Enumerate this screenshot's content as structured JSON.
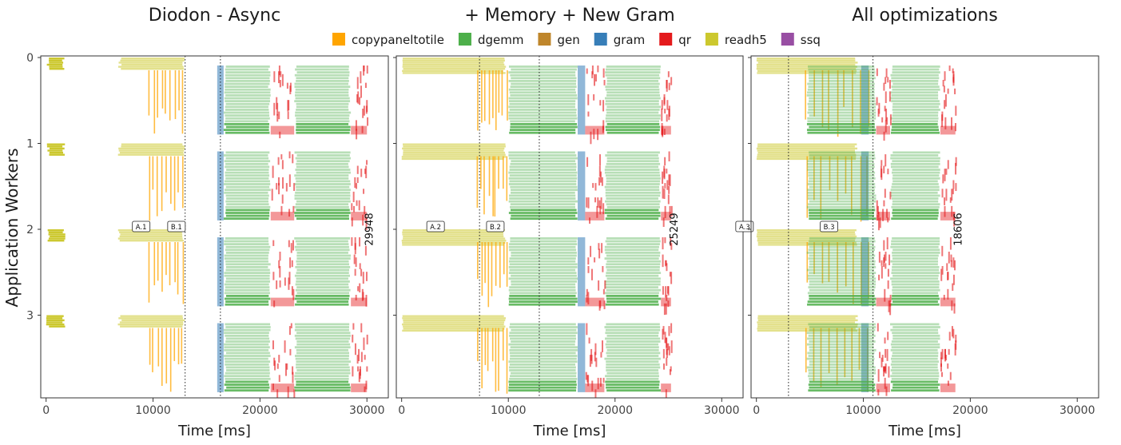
{
  "legend": {
    "items": [
      {
        "name": "copypaneltotile",
        "color": "#FFA500"
      },
      {
        "name": "dgemm",
        "color": "#4DAF4A"
      },
      {
        "name": "gen",
        "color": "#BF862B"
      },
      {
        "name": "gram",
        "color": "#377EB8"
      },
      {
        "name": "qr",
        "color": "#E41A1C"
      },
      {
        "name": "readh5",
        "color": "#CCC82E"
      },
      {
        "name": "ssq",
        "color": "#984EA3"
      }
    ]
  },
  "chart_data": [
    {
      "type": "gantt",
      "title": "Diodon - Async",
      "xlabel": "Time [ms]",
      "ylabel": "Application Workers",
      "xlim": [
        -500,
        32000
      ],
      "xticks": [
        0,
        10000,
        20000,
        30000
      ],
      "yticks": [
        0,
        1,
        2,
        3
      ],
      "markers": [
        {
          "label": "A.1",
          "x": 13000
        },
        {
          "label": "B.1",
          "x": 16300
        }
      ],
      "makespan": {
        "value": "29948",
        "x": 29948
      },
      "segments": {
        "readh5": [
          [
            0,
            1800
          ],
          [
            6700,
            13000
          ]
        ],
        "copypaneltotile": [
          [
            9500,
            13000
          ]
        ],
        "gram": [
          [
            16000,
            16600
          ]
        ],
        "dgemm": [
          [
            16600,
            21000
          ],
          [
            23200,
            28500
          ]
        ],
        "qr": [
          [
            21000,
            23200
          ],
          [
            28500,
            30000
          ]
        ]
      }
    },
    {
      "type": "gantt",
      "title": "+ Memory + New Gram",
      "xlabel": "Time [ms]",
      "ylabel": "",
      "xlim": [
        -500,
        32000
      ],
      "xticks": [
        0,
        10000,
        20000,
        30000
      ],
      "yticks": [
        0,
        1,
        2,
        3
      ],
      "markers": [
        {
          "label": "A.2",
          "x": 7300
        },
        {
          "label": "B.2",
          "x": 12900
        }
      ],
      "makespan": {
        "value": "25249",
        "x": 25249
      },
      "segments": {
        "readh5": [
          [
            0,
            9800
          ]
        ],
        "copypaneltotile": [
          [
            7000,
            10000
          ]
        ],
        "gram": [
          [
            16500,
            17200
          ]
        ],
        "dgemm": [
          [
            10000,
            16500
          ],
          [
            19000,
            24300
          ]
        ],
        "qr": [
          [
            17200,
            19000
          ],
          [
            24300,
            25249
          ]
        ]
      }
    },
    {
      "type": "gantt",
      "title": "All optimizations",
      "xlabel": "Time [ms]",
      "ylabel": "",
      "xlim": [
        -500,
        32000
      ],
      "xticks": [
        0,
        10000,
        20000,
        30000
      ],
      "yticks": [
        0,
        1,
        2,
        3
      ],
      "markers": [
        {
          "label": "A.3",
          "x": 3000
        },
        {
          "label": "B.3",
          "x": 10900
        }
      ],
      "makespan": {
        "value": "18606",
        "x": 18606
      },
      "segments": {
        "readh5": [
          [
            0,
            9500
          ]
        ],
        "copypaneltotile": [
          [
            4500,
            11000
          ]
        ],
        "gram": [
          [
            9800,
            10500
          ]
        ],
        "dgemm": [
          [
            4700,
            11200
          ],
          [
            12500,
            17200
          ]
        ],
        "qr": [
          [
            11200,
            12500
          ],
          [
            17200,
            18606
          ]
        ]
      }
    }
  ]
}
